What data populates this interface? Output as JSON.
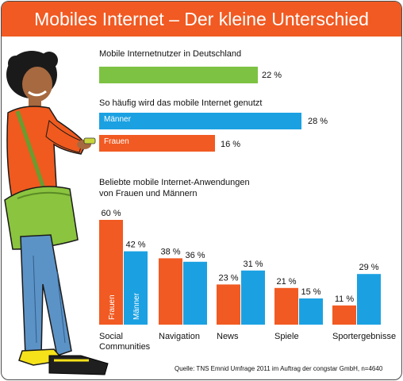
{
  "title": "Mobiles Internet – Der kleine Unterschied",
  "colors": {
    "title_bg": "#f15a22",
    "green": "#7dc242",
    "blue": "#1ba1e2",
    "orange": "#f15a22"
  },
  "illustration": {
    "name": "man-with-phone-and-shoulder-bag",
    "description_icon": "person-illustration"
  },
  "chart_data": [
    {
      "type": "bar",
      "orientation": "horizontal",
      "title": "Mobile Internetnutzer in Deutschland",
      "series": [
        {
          "values": [
            22
          ],
          "value_labels": [
            "22 %"
          ]
        }
      ],
      "xlim": [
        0,
        28
      ]
    },
    {
      "type": "bar",
      "orientation": "horizontal",
      "title": "So häufig wird das mobile Internet genutzt",
      "categories": [
        "Männer",
        "Frauen"
      ],
      "values": [
        28,
        16
      ],
      "value_labels": [
        "28 %",
        "16 %"
      ],
      "xlim": [
        0,
        28
      ]
    },
    {
      "type": "bar",
      "orientation": "vertical",
      "title": "Beliebte mobile Internet-Anwendungen\nvon Frauen und Männern",
      "categories": [
        "Social Communities",
        "Navigation",
        "News",
        "Spiele",
        "Sportergebnisse"
      ],
      "series": [
        {
          "name": "Frauen",
          "values": [
            60,
            38,
            23,
            21,
            11
          ]
        },
        {
          "name": "Männer",
          "values": [
            42,
            36,
            31,
            15,
            29
          ]
        }
      ],
      "ylim": [
        0,
        60
      ]
    }
  ],
  "text": {
    "users_title": "Mobile Internetnutzer in Deutschland",
    "users_value": "22 %",
    "freq_title": "So häufig wird das mobile Internet genutzt",
    "men_label": "Männer",
    "men_value": "28 %",
    "women_label": "Frauen",
    "women_value": "16 %",
    "apps_title_1": "Beliebte mobile Internet-Anwendungen",
    "apps_title_2": "von Frauen und Männern",
    "cat_social_1": "Social",
    "cat_social_2": "Communities",
    "cat_nav": "Navigation",
    "cat_news": "News",
    "cat_games": "Spiele",
    "cat_sports": "Sportergebnisse",
    "inbar_women": "Frauen",
    "inbar_men": "Männer",
    "percent_suffix": " %",
    "source": "Quelle: TNS Emnid Umfrage 2011 im Auftrag der congstar GmbH, n=4640"
  }
}
